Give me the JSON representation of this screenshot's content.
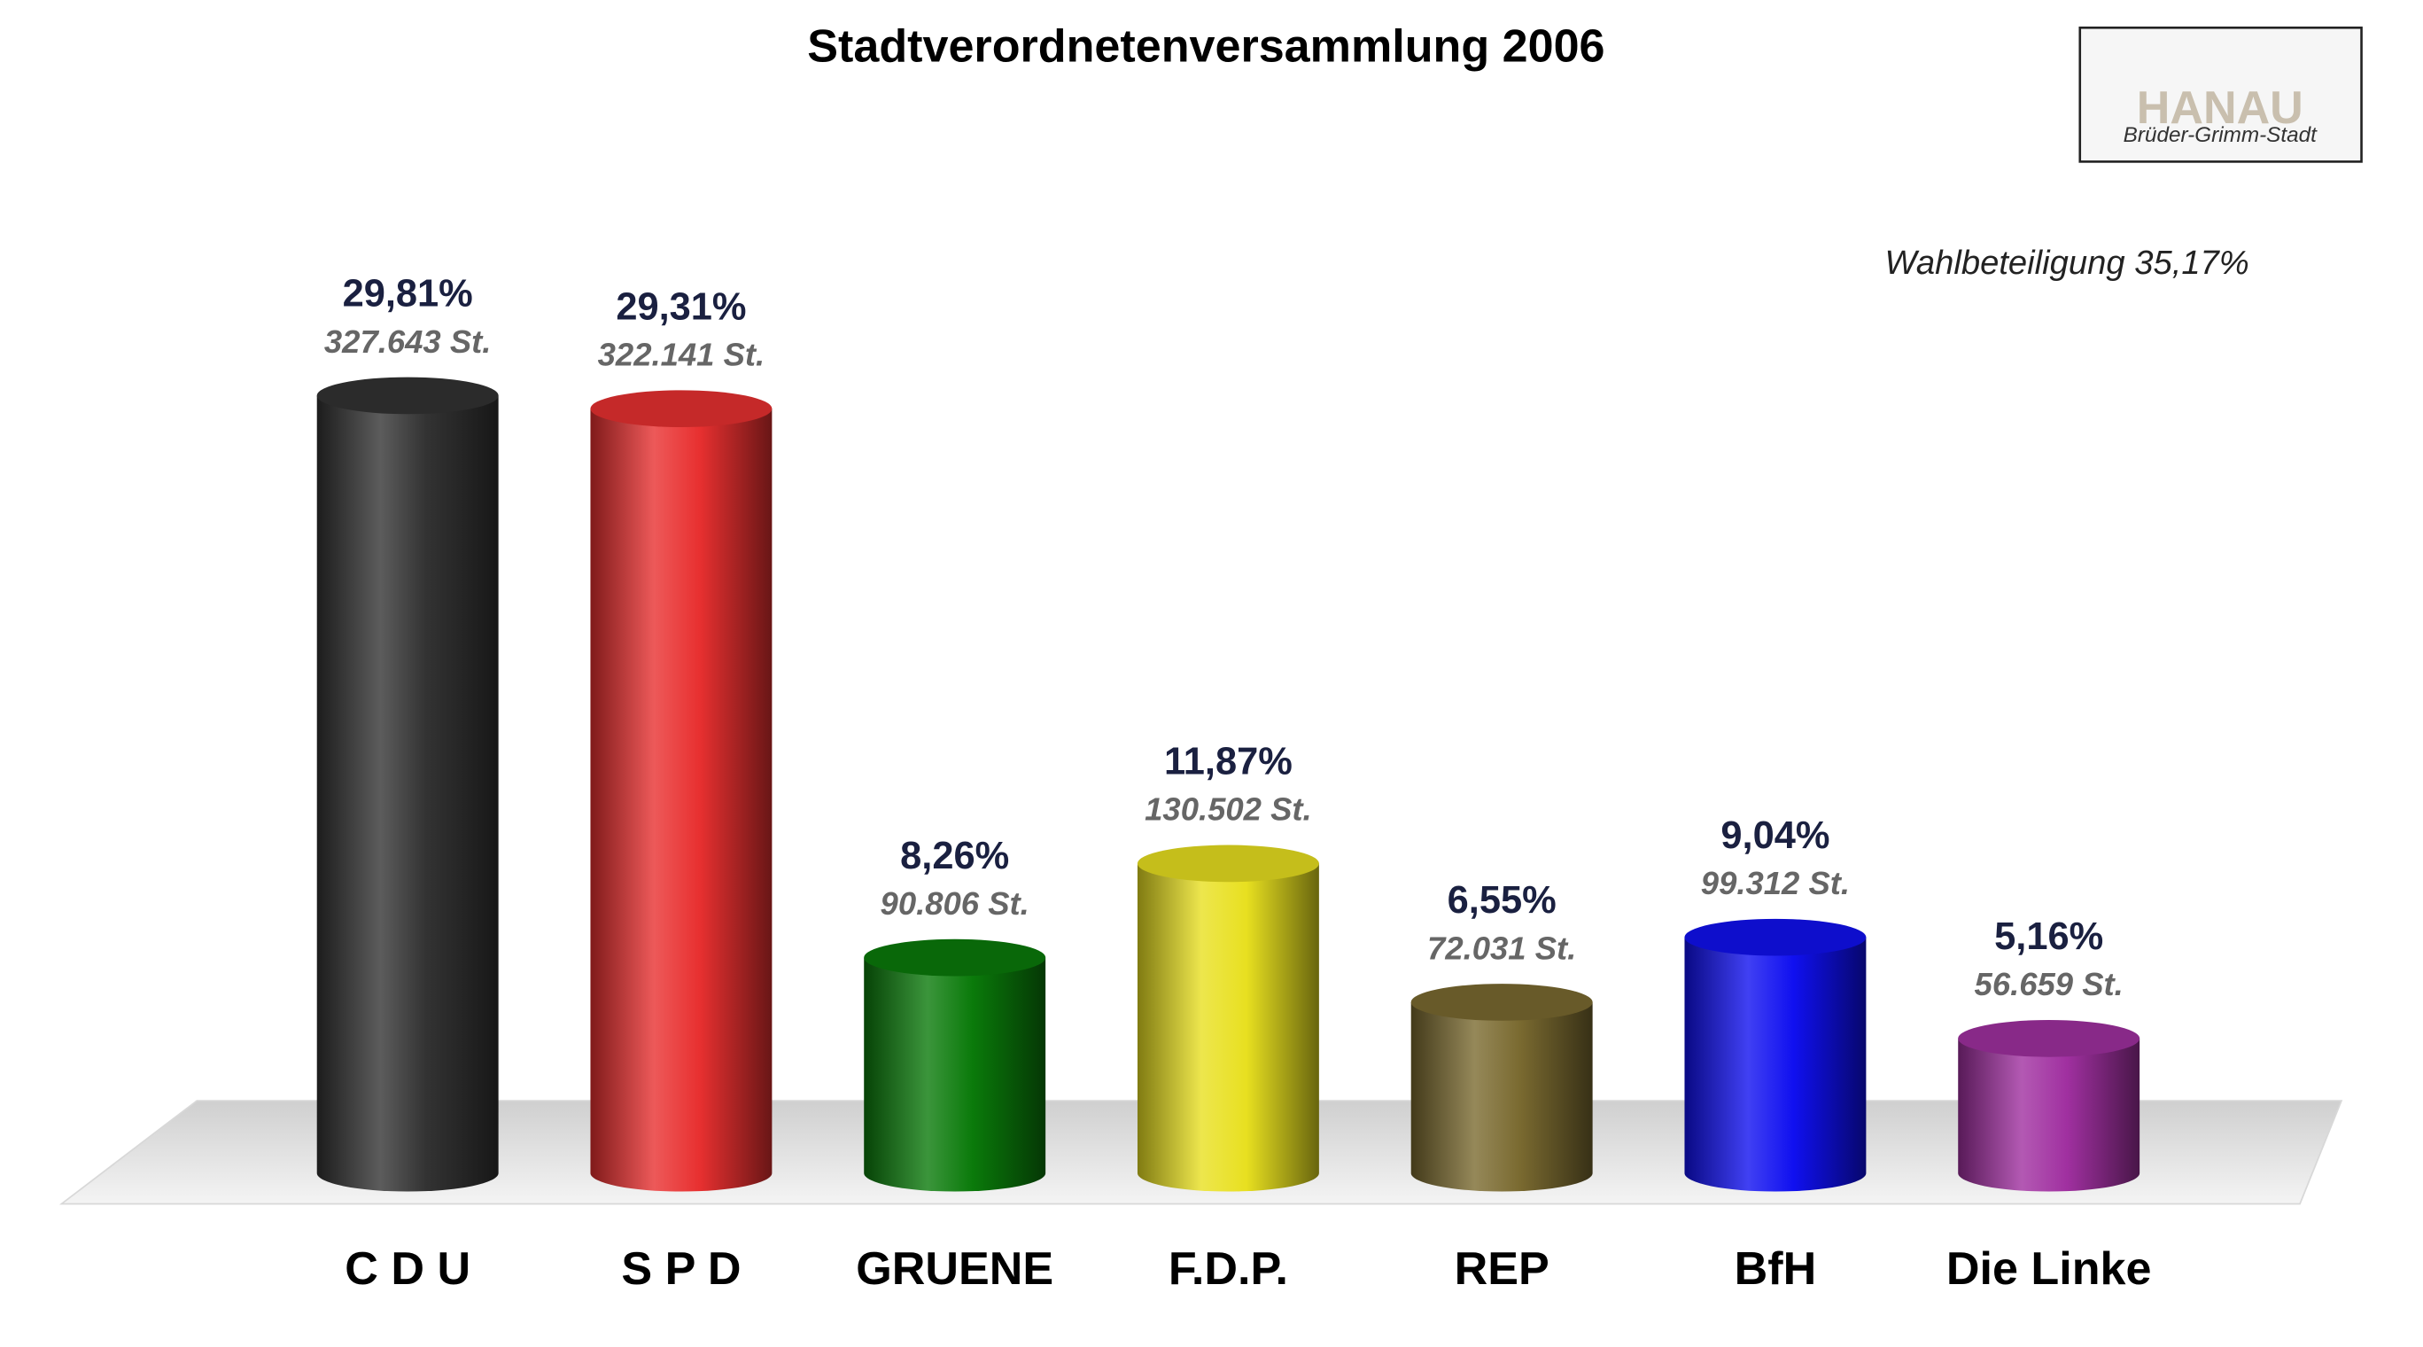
{
  "chart_data": {
    "type": "bar",
    "title": "Stadtverordnetenversammlung 2006",
    "annotation": "Wahlbeteiligung 35,17%",
    "logo": {
      "text": "Brüder-Grimm-Stadt",
      "watermark": "HANAU"
    },
    "categories": [
      "C D U",
      "S P D",
      "GRUENE",
      "F.D.P.",
      "REP",
      "BfH",
      "Die Linke"
    ],
    "values": [
      29.81,
      29.31,
      8.26,
      11.87,
      6.55,
      9.04,
      5.16
    ],
    "value_labels": [
      "29,81%",
      "29,31%",
      "8,26%",
      "11,87%",
      "6,55%",
      "9,04%",
      "5,16%"
    ],
    "votes": [
      327643,
      322141,
      90806,
      130502,
      72031,
      99312,
      56659
    ],
    "vote_labels": [
      "327.643 St.",
      "322.141 St.",
      "90.806 St.",
      "130.502 St.",
      "72.031 St.",
      "99.312 St.",
      "56.659 St."
    ],
    "colors": [
      "#333333",
      "#e83030",
      "#0a7a0a",
      "#e8e020",
      "#7a6a30",
      "#1010f0",
      "#a030a0"
    ]
  }
}
